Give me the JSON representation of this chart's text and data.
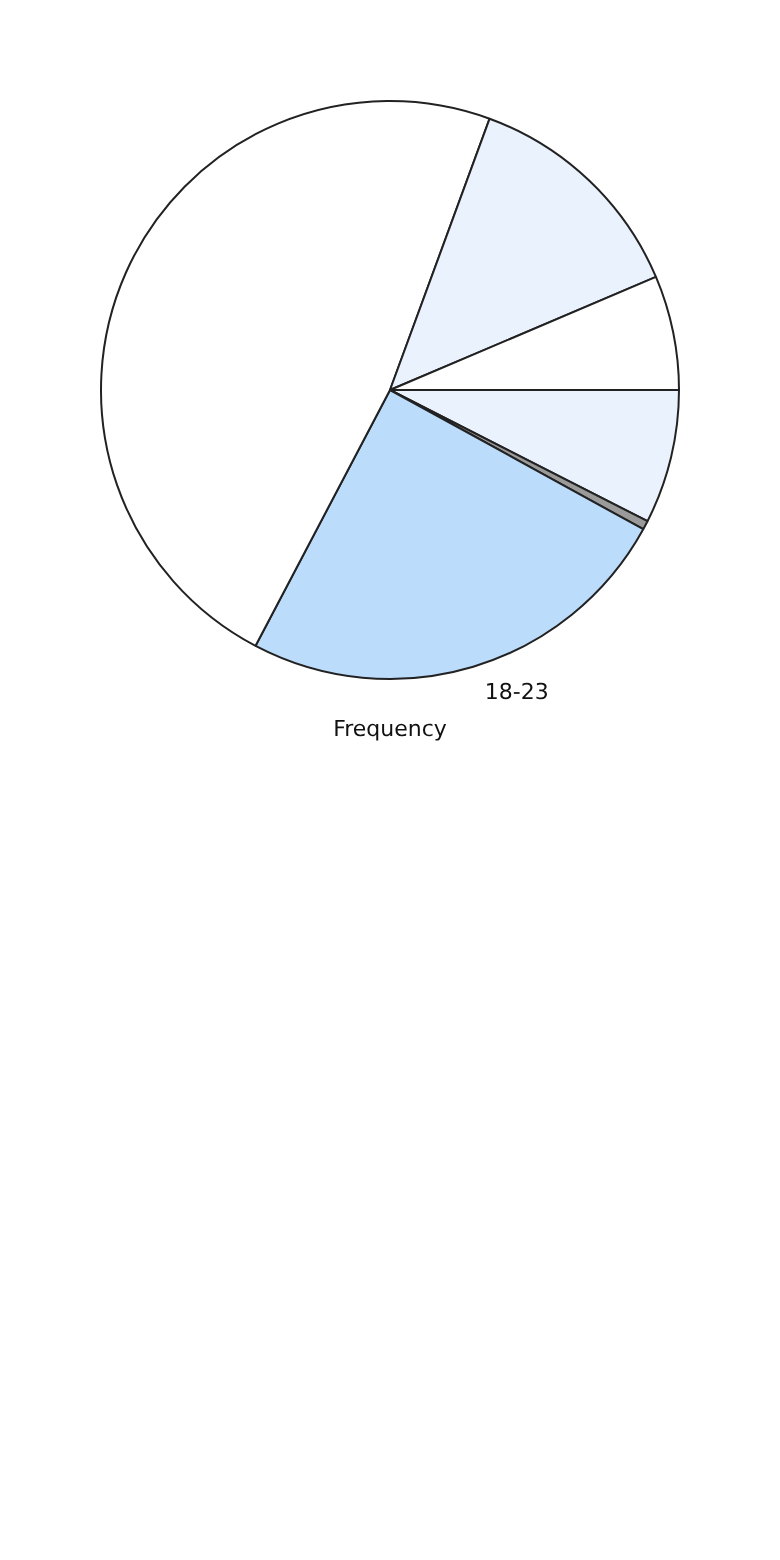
{
  "chart_data": {
    "type": "pie",
    "xlabel": "Frequency",
    "categories": [
      null,
      null,
      "18-23",
      null,
      null,
      null
    ],
    "values": [
      7.5,
      0.5,
      24.7,
      47.9,
      13,
      6.4
    ],
    "colors": [
      "#eaf2fd",
      "#9a9a9a",
      "#bcdcfc",
      "#ffffff",
      "#eaf2fd",
      "#ffffff"
    ],
    "legend": false
  }
}
